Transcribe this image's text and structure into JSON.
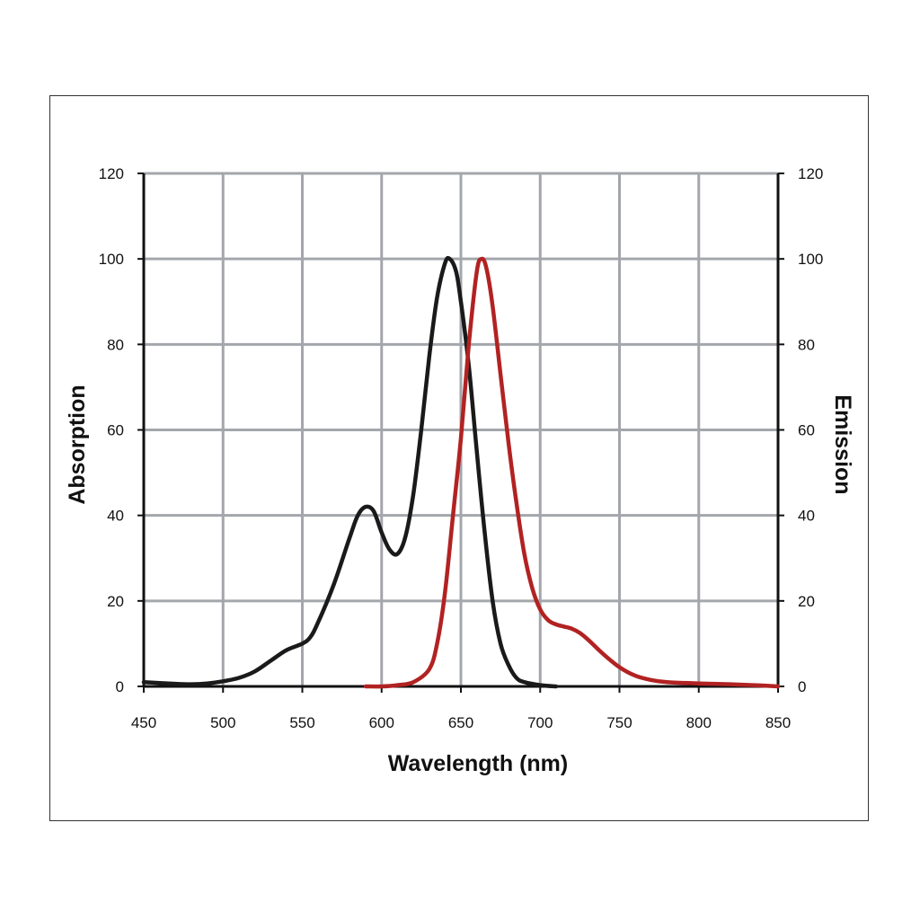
{
  "chart_data": {
    "type": "line",
    "xlabel": "Wavelength (nm)",
    "ylabel_left": "Absorption",
    "ylabel_right": "Emission",
    "xlim": [
      450,
      850
    ],
    "ylim": [
      0,
      120
    ],
    "x_ticks": [
      "450",
      "500",
      "550",
      "600",
      "650",
      "700",
      "750",
      "800",
      "850"
    ],
    "y_ticks": [
      "0",
      "20",
      "40",
      "60",
      "80",
      "100",
      "120"
    ],
    "grid": true,
    "series": [
      {
        "axis": "left",
        "color": "#1a1a1a",
        "points": [
          [
            450,
            1.0
          ],
          [
            460,
            0.8
          ],
          [
            470,
            0.6
          ],
          [
            480,
            0.5
          ],
          [
            490,
            0.7
          ],
          [
            500,
            1.2
          ],
          [
            510,
            2.0
          ],
          [
            520,
            3.5
          ],
          [
            530,
            6.0
          ],
          [
            540,
            8.5
          ],
          [
            550,
            10.0
          ],
          [
            555,
            11.5
          ],
          [
            560,
            15.0
          ],
          [
            570,
            24.0
          ],
          [
            580,
            35.0
          ],
          [
            585,
            40.0
          ],
          [
            590,
            42.0
          ],
          [
            595,
            41.0
          ],
          [
            600,
            36.0
          ],
          [
            605,
            32.0
          ],
          [
            610,
            31.0
          ],
          [
            615,
            35.0
          ],
          [
            620,
            45.0
          ],
          [
            625,
            60.0
          ],
          [
            630,
            77.0
          ],
          [
            635,
            91.0
          ],
          [
            640,
            99.0
          ],
          [
            643,
            100.0
          ],
          [
            647,
            97.0
          ],
          [
            650,
            90.0
          ],
          [
            655,
            75.0
          ],
          [
            660,
            55.0
          ],
          [
            665,
            36.0
          ],
          [
            670,
            20.0
          ],
          [
            675,
            10.0
          ],
          [
            680,
            5.0
          ],
          [
            685,
            2.0
          ],
          [
            690,
            1.0
          ],
          [
            700,
            0.3
          ],
          [
            710,
            0.0
          ]
        ]
      },
      {
        "axis": "right",
        "color": "#b22222",
        "points": [
          [
            590,
            0.0
          ],
          [
            600,
            0.0
          ],
          [
            610,
            0.3
          ],
          [
            620,
            1.0
          ],
          [
            630,
            4.0
          ],
          [
            635,
            10.0
          ],
          [
            640,
            22.0
          ],
          [
            645,
            40.0
          ],
          [
            650,
            58.0
          ],
          [
            655,
            80.0
          ],
          [
            660,
            97.0
          ],
          [
            663,
            100.0
          ],
          [
            666,
            98.0
          ],
          [
            670,
            89.0
          ],
          [
            675,
            73.0
          ],
          [
            680,
            57.0
          ],
          [
            685,
            43.0
          ],
          [
            690,
            31.0
          ],
          [
            695,
            23.0
          ],
          [
            700,
            18.0
          ],
          [
            705,
            15.5
          ],
          [
            710,
            14.5
          ],
          [
            715,
            14.0
          ],
          [
            720,
            13.5
          ],
          [
            725,
            12.5
          ],
          [
            730,
            11.0
          ],
          [
            740,
            7.5
          ],
          [
            750,
            4.5
          ],
          [
            760,
            2.5
          ],
          [
            770,
            1.5
          ],
          [
            780,
            1.0
          ],
          [
            800,
            0.7
          ],
          [
            820,
            0.5
          ],
          [
            840,
            0.2
          ],
          [
            850,
            0.0
          ]
        ]
      }
    ]
  }
}
